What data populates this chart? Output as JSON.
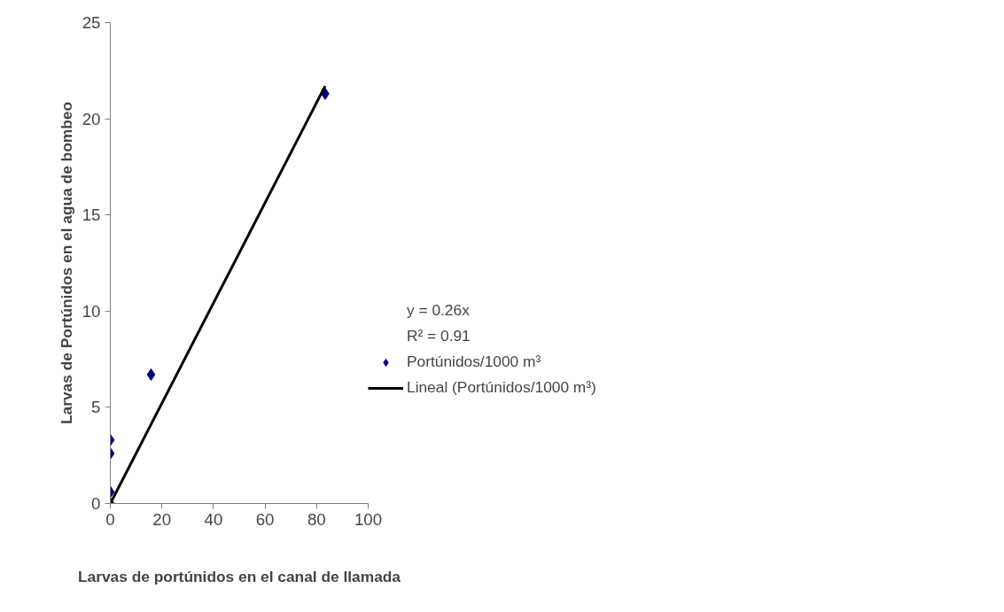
{
  "chart_data": {
    "type": "scatter",
    "xlabel": "Larvas de portúnidos en el canal de llamada",
    "ylabel": "Larvas de Portúnidos en el agua de bombeo",
    "x": [
      0,
      0,
      0,
      0,
      15.8,
      83.3
    ],
    "series": [
      {
        "name": "Portúnidos/1000 m³",
        "color": "#000080",
        "marker": "diamond",
        "values": [
          0,
          0.6,
          2.6,
          3.3,
          6.7,
          21.3
        ]
      },
      {
        "name": "Lineal (Portúnidos/1000 m³)",
        "color": "#000000",
        "type": "line",
        "line_style": "solid",
        "x": [
          0,
          83.3
        ],
        "values": [
          0,
          21.7
        ]
      }
    ],
    "annotations": [
      "y = 0.26x",
      "R² = 0.91"
    ],
    "xlim": [
      0,
      100
    ],
    "xticks": [
      0,
      20,
      40,
      60,
      80,
      100
    ],
    "ylim": [
      0,
      25
    ],
    "yticks": [
      0,
      5,
      10,
      15,
      20,
      25
    ],
    "grid": false,
    "legend": "right"
  }
}
